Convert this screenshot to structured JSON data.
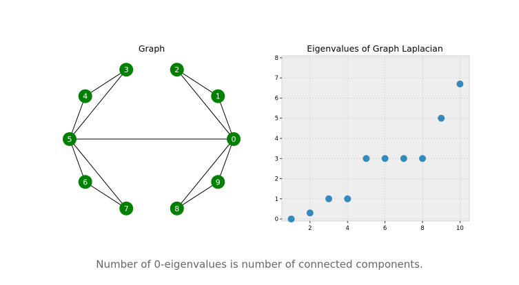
{
  "caption": "Number of 0-eigenvalues is number of connected components.",
  "colors": {
    "node": "#008000",
    "node_text": "#ffffff",
    "edge": "#000000",
    "point": "#348abd",
    "plot_bg": "#eeeeee",
    "grid": "#c8c8c8"
  },
  "chart_data": [
    {
      "type": "graph",
      "title": "Graph",
      "nodes": [
        "0",
        "1",
        "2",
        "3",
        "4",
        "5",
        "6",
        "7",
        "8",
        "9"
      ],
      "edges": [
        [
          "0",
          "1"
        ],
        [
          "0",
          "2"
        ],
        [
          "1",
          "2"
        ],
        [
          "0",
          "5"
        ],
        [
          "0",
          "8"
        ],
        [
          "0",
          "9"
        ],
        [
          "8",
          "9"
        ],
        [
          "3",
          "4"
        ],
        [
          "3",
          "5"
        ],
        [
          "4",
          "5"
        ],
        [
          "5",
          "6"
        ],
        [
          "5",
          "7"
        ],
        [
          "6",
          "7"
        ]
      ]
    },
    {
      "type": "scatter",
      "title": "Eigenvalues of Graph Laplacian",
      "xlabel": "",
      "ylabel": "",
      "x": [
        1,
        2,
        3,
        4,
        5,
        6,
        7,
        8,
        9,
        10
      ],
      "y": [
        0,
        0.3,
        1,
        1,
        3,
        3,
        3,
        3,
        5,
        6.7
      ],
      "xticks": [
        2,
        4,
        6,
        8,
        10
      ],
      "yticks": [
        0,
        1,
        2,
        3,
        4,
        5,
        6,
        7,
        8
      ],
      "xlim": [
        0.5,
        10.5
      ],
      "ylim": [
        -0.1,
        8.1
      ],
      "grid": true
    }
  ]
}
